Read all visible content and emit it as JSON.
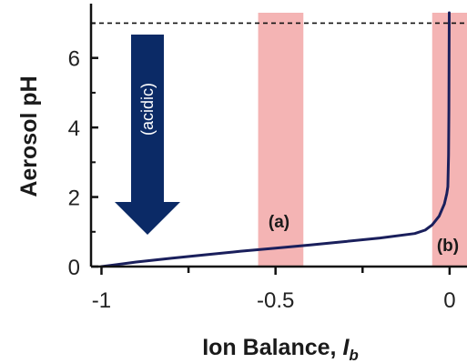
{
  "chart_data": {
    "type": "line",
    "xlabel": "Ion Balance, ",
    "xlabel_sub": "I",
    "xlabel_subscript": "b",
    "ylabel": "Aerosol pH",
    "xlim": [
      -1.03,
      0.05
    ],
    "ylim": [
      0,
      7.3
    ],
    "x_ticks": [
      -1,
      -0.5,
      0
    ],
    "x_tick_labels": [
      "-1",
      "-0.5",
      "0"
    ],
    "y_ticks": [
      0,
      2,
      4,
      6
    ],
    "y_tick_labels": [
      "0",
      "2",
      "4",
      "6"
    ],
    "dashed_reference_y": 7,
    "shaded_bands": [
      {
        "label": "(a)",
        "x_range": [
          -0.55,
          -0.42
        ],
        "color": "#f4b4b4"
      },
      {
        "label": "(b)",
        "x_range": [
          -0.05,
          0.05
        ],
        "color": "#f4b4b4"
      }
    ],
    "arrow_label": "(acidic)",
    "arrow_color": "#0b2a66",
    "line_color": "#1a1f5c",
    "series": [
      {
        "x": [
          -1.0,
          -0.9,
          -0.8,
          -0.7,
          -0.6,
          -0.5,
          -0.4,
          -0.3,
          -0.2,
          -0.1,
          -0.07,
          -0.05,
          -0.03,
          -0.015,
          -0.008,
          -0.005,
          -0.003,
          -0.002,
          -0.0015,
          -0.001
        ],
        "y": [
          0.0,
          0.13,
          0.24,
          0.34,
          0.44,
          0.53,
          0.62,
          0.72,
          0.82,
          0.95,
          1.05,
          1.2,
          1.45,
          1.8,
          2.1,
          2.3,
          3.2,
          4.5,
          6.0,
          7.3
        ]
      }
    ]
  }
}
